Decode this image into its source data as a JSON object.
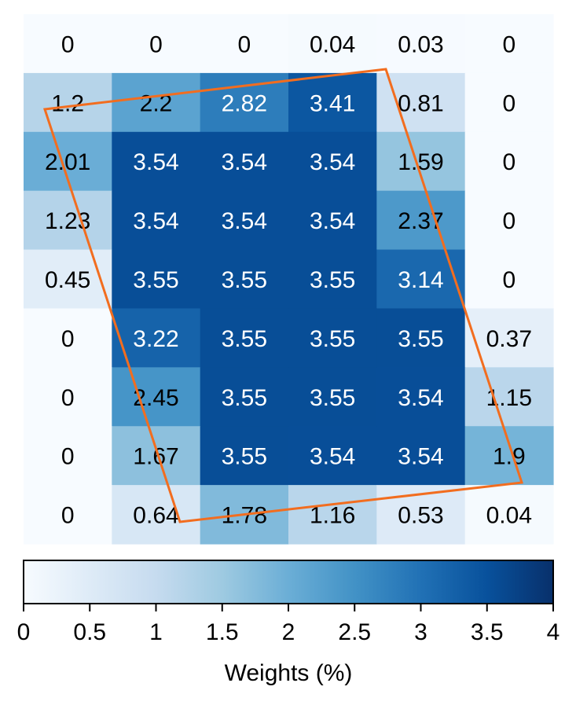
{
  "chart_data": {
    "type": "heatmap",
    "rows": 9,
    "cols": 6,
    "values": [
      [
        0,
        0,
        0,
        0.04,
        0.03,
        0
      ],
      [
        1.2,
        2.2,
        2.82,
        3.41,
        0.81,
        0
      ],
      [
        2.01,
        3.54,
        3.54,
        3.54,
        1.59,
        0
      ],
      [
        1.23,
        3.54,
        3.54,
        3.54,
        2.37,
        0
      ],
      [
        0.45,
        3.55,
        3.55,
        3.55,
        3.14,
        0
      ],
      [
        0,
        3.22,
        3.55,
        3.55,
        3.55,
        0.37
      ],
      [
        0,
        2.45,
        3.55,
        3.55,
        3.54,
        1.15
      ],
      [
        0,
        1.67,
        3.55,
        3.54,
        3.54,
        1.9
      ],
      [
        0,
        0.64,
        1.78,
        1.16,
        0.53,
        0.04
      ]
    ],
    "cell_labels": [
      [
        "0",
        "0",
        "0",
        "0.04",
        "0.03",
        "0"
      ],
      [
        "1.2",
        "2.2",
        "2.82",
        "3.41",
        "0.81",
        "0"
      ],
      [
        "2.01",
        "3.54",
        "3.54",
        "3.54",
        "1.59",
        "0"
      ],
      [
        "1.23",
        "3.54",
        "3.54",
        "3.54",
        "2.37",
        "0"
      ],
      [
        "0.45",
        "3.55",
        "3.55",
        "3.55",
        "3.14",
        "0"
      ],
      [
        "0",
        "3.22",
        "3.55",
        "3.55",
        "3.55",
        "0.37"
      ],
      [
        "0",
        "2.45",
        "3.55",
        "3.55",
        "3.54",
        "1.15"
      ],
      [
        "0",
        "1.67",
        "3.55",
        "3.54",
        "3.54",
        "1.9"
      ],
      [
        "0",
        "0.64",
        "1.78",
        "1.16",
        "0.53",
        "0.04"
      ]
    ],
    "colorbar": {
      "label": "Weights (%)",
      "range": [
        0,
        4
      ],
      "ticks": [
        0,
        0.5,
        1,
        1.5,
        2,
        2.5,
        3,
        3.5,
        4
      ],
      "tick_labels": [
        "0",
        "0.5",
        "1",
        "1.5",
        "2",
        "2.5",
        "3",
        "3.5",
        "4"
      ],
      "colormap": "Blues",
      "orientation": "horizontal",
      "placement": "bottom"
    },
    "overlay": {
      "shape": "rotated rectangle outline",
      "color": "#f26d1f"
    },
    "colors": {
      "cmap_stops": [
        "#f7fbff",
        "#deebf7",
        "#c6dbef",
        "#9ecae1",
        "#6baed6",
        "#4292c6",
        "#2171b5",
        "#08519c",
        "#08306b"
      ],
      "text_dark": "#000000",
      "text_light": "#ffffff"
    }
  }
}
